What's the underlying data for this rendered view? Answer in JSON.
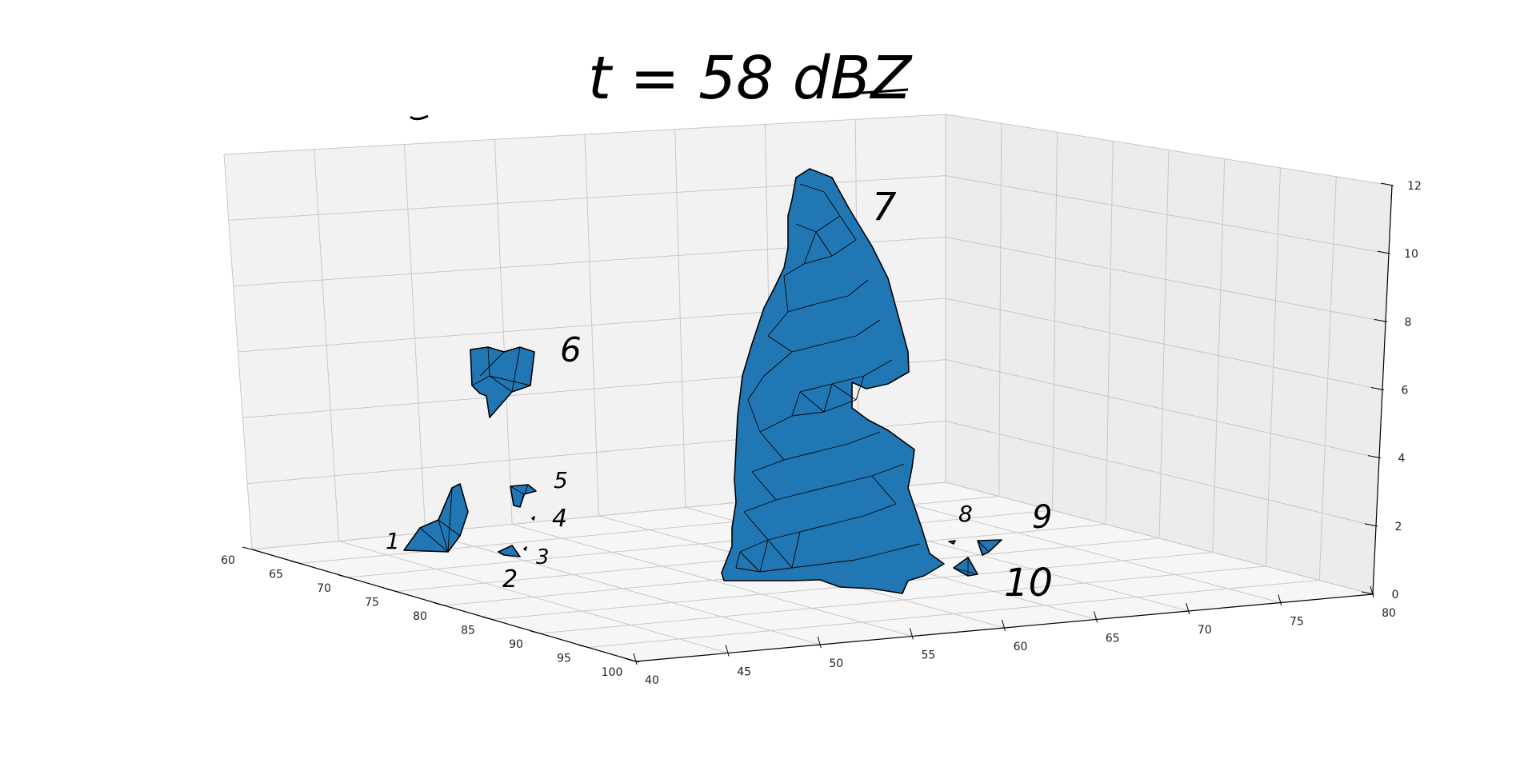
{
  "annotation": "t = 58 dBZ",
  "chart_data": {
    "type": "surface3d",
    "title": "",
    "xlabel": "",
    "ylabel": "",
    "zlabel": "",
    "x_axis": {
      "range": [
        40,
        80
      ],
      "ticks": [
        "40",
        "45",
        "50",
        "55",
        "60",
        "65",
        "70",
        "75",
        "80"
      ]
    },
    "y_axis": {
      "range": [
        60,
        100
      ],
      "ticks": [
        "60",
        "65",
        "70",
        "75",
        "80",
        "85",
        "90",
        "95",
        "100"
      ]
    },
    "z_axis": {
      "range": [
        0,
        12
      ],
      "ticks": [
        "0",
        "2",
        "4",
        "6",
        "8",
        "10",
        "12"
      ]
    },
    "grid": true,
    "face_color": "#2077b4",
    "edge_color": "#000000",
    "pane_color": "#f2f2f2",
    "objects": [
      {
        "label": "1"
      },
      {
        "label": "2"
      },
      {
        "label": "3"
      },
      {
        "label": "4"
      },
      {
        "label": "5"
      },
      {
        "label": "6"
      },
      {
        "label": "7"
      },
      {
        "label": "8"
      },
      {
        "label": "9"
      },
      {
        "label": "10"
      }
    ]
  }
}
